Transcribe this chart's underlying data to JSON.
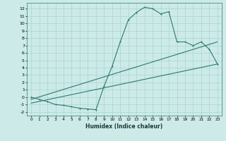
{
  "xlabel": "Humidex (Indice chaleur)",
  "bg_color": "#cceae8",
  "grid_color": "#aad4d2",
  "line_color": "#2d7a6e",
  "xlim": [
    -0.5,
    23.5
  ],
  "ylim": [
    -2.5,
    12.8
  ],
  "xticks": [
    0,
    1,
    2,
    3,
    4,
    5,
    6,
    7,
    8,
    9,
    10,
    11,
    12,
    13,
    14,
    15,
    16,
    17,
    18,
    19,
    20,
    21,
    22,
    23
  ],
  "yticks": [
    -2,
    -1,
    0,
    1,
    2,
    3,
    4,
    5,
    6,
    7,
    8,
    9,
    10,
    11,
    12
  ],
  "curve1_x": [
    0,
    1,
    2,
    3,
    4,
    5,
    6,
    7,
    8,
    9,
    10,
    11,
    12,
    13,
    14,
    15,
    16,
    17,
    18,
    19,
    20,
    21,
    22,
    23
  ],
  "curve1_y": [
    0.0,
    -0.3,
    -0.6,
    -1.0,
    -1.1,
    -1.3,
    -1.5,
    -1.6,
    -1.7,
    1.5,
    4.2,
    7.5,
    10.5,
    11.5,
    12.2,
    12.0,
    11.3,
    11.6,
    7.5,
    7.5,
    7.0,
    7.5,
    6.5,
    4.5
  ],
  "curve2_x": [
    0,
    23
  ],
  "curve2_y": [
    -0.3,
    7.5
  ],
  "curve3_x": [
    0,
    23
  ],
  "curve3_y": [
    -0.8,
    4.5
  ]
}
